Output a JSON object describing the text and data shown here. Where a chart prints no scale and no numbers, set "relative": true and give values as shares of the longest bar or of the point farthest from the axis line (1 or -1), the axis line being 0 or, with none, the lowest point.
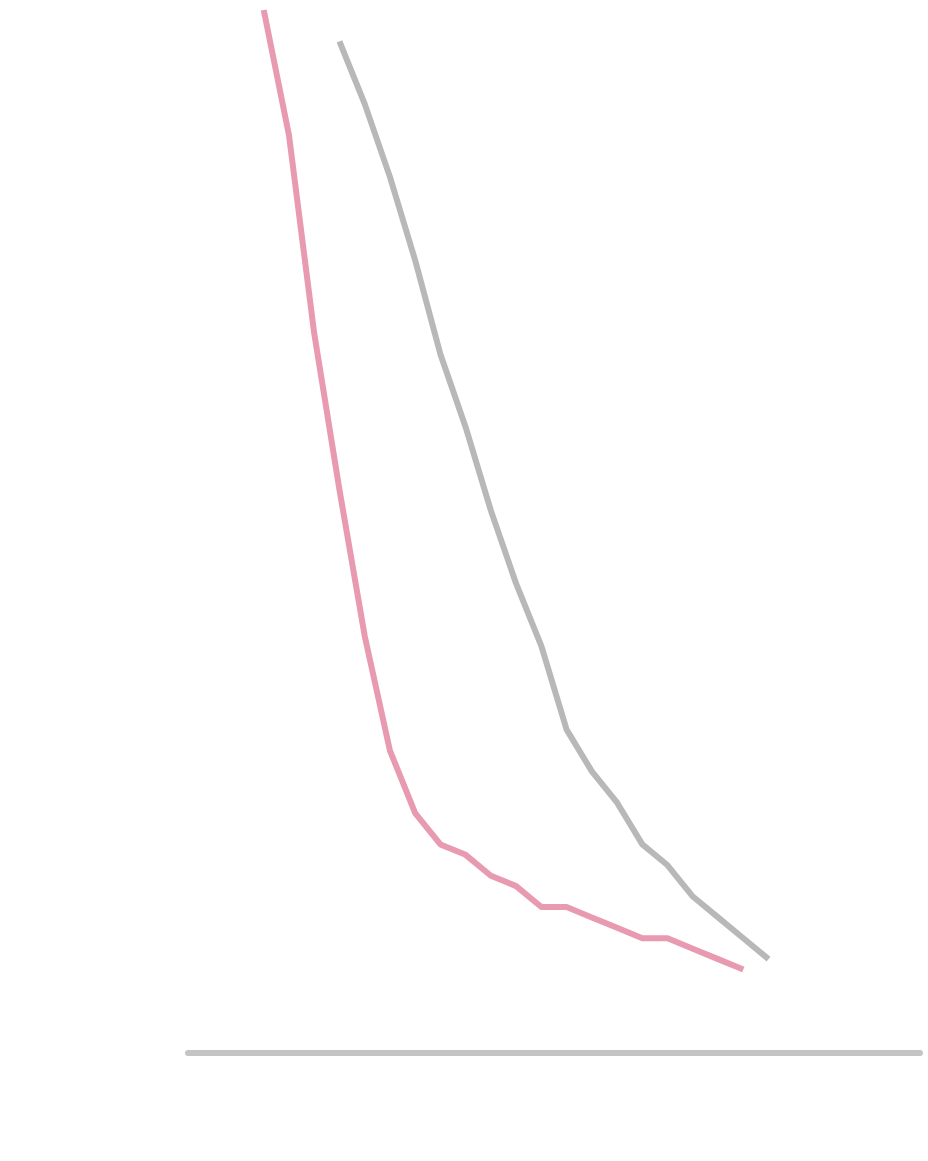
{
  "chart_data": {
    "type": "line",
    "relative": true,
    "categories": [
      null,
      null,
      null,
      null,
      null,
      null,
      null,
      null,
      null,
      null,
      null,
      null,
      null,
      null,
      null,
      null,
      null,
      null,
      null,
      null,
      null,
      null,
      null,
      null,
      null,
      null,
      null,
      null,
      null,
      null
    ],
    "series": [
      {
        "color": "#b8b8b8",
        "values": [
          null,
          null,
          null,
          null,
          null,
          null,
          0.97,
          0.91,
          0.84,
          0.76,
          0.67,
          0.6,
          0.52,
          0.45,
          0.39,
          0.31,
          0.27,
          0.24,
          0.2,
          0.18,
          0.15,
          0.13,
          0.11,
          0.09,
          null,
          null,
          null,
          null,
          null,
          null
        ]
      },
      {
        "color": "#e89bb0",
        "values": [
          null,
          null,
          null,
          1.0,
          0.88,
          0.69,
          0.54,
          0.4,
          0.29,
          0.23,
          0.2,
          0.19,
          0.17,
          0.16,
          0.14,
          0.14,
          0.13,
          0.12,
          0.11,
          0.11,
          0.1,
          0.09,
          0.08,
          null,
          null,
          null,
          null,
          null,
          null,
          null
        ]
      }
    ],
    "marker": "none"
  }
}
